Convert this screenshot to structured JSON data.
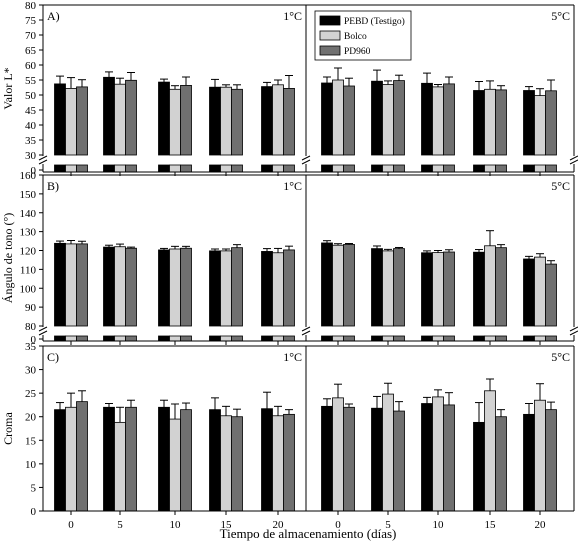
{
  "figure": {
    "xlabel": "Tiempo de almacenamiento (días)",
    "legend": [
      "PEBD (Testigo)",
      "Bolco",
      "PD960"
    ]
  },
  "colors": {
    "PEBD (Testigo)": "#000000",
    "Bolco": "#d2d2d2",
    "PD960": "#707070"
  },
  "chart_data": [
    {
      "type": "bar",
      "panel": "A)",
      "temp": "1°C",
      "ylabel": "Valor L*",
      "ylim": [
        30,
        80
      ],
      "yticks": [
        30,
        35,
        40,
        45,
        50,
        55,
        60,
        65,
        70,
        75,
        80
      ],
      "y_low_tick": 0,
      "broken_axis": true,
      "error_bars": true,
      "legend_position": "top-right",
      "categories": [
        "0",
        "5",
        "10",
        "15",
        "20"
      ],
      "series": [
        {
          "name": "PEBD (Testigo)",
          "values": [
            53.7,
            55.9,
            54.3,
            52.6,
            52.8
          ],
          "errors": [
            2.6,
            1.8,
            1.0,
            2.6,
            1.4
          ]
        },
        {
          "name": "Bolco",
          "values": [
            52.2,
            53.6,
            51.9,
            52.6,
            53.4
          ],
          "errors": [
            3.6,
            2.0,
            1.2,
            0.8,
            1.6
          ]
        },
        {
          "name": "PD960",
          "values": [
            52.7,
            54.9,
            53.2,
            51.9,
            52.2
          ],
          "errors": [
            2.4,
            2.6,
            2.8,
            1.5,
            4.3
          ]
        }
      ]
    },
    {
      "type": "bar",
      "panel": "",
      "temp": "5°C",
      "ylim": [
        30,
        80
      ],
      "broken_axis": true,
      "error_bars": true,
      "legend_position": "top-right",
      "categories": [
        "0",
        "5",
        "10",
        "15",
        "20"
      ],
      "series": [
        {
          "name": "PEBD (Testigo)",
          "values": [
            54.0,
            54.6,
            53.9,
            51.5,
            51.5
          ],
          "errors": [
            2.0,
            3.7,
            3.4,
            3.0,
            1.3
          ]
        },
        {
          "name": "Bolco",
          "values": [
            55.0,
            53.5,
            52.7,
            51.9,
            49.8
          ],
          "errors": [
            4.0,
            1.2,
            0.8,
            2.8,
            2.3
          ]
        },
        {
          "name": "PD960",
          "values": [
            53.0,
            54.8,
            53.7,
            51.7,
            51.4
          ],
          "errors": [
            2.6,
            1.8,
            2.3,
            1.4,
            3.6
          ]
        }
      ]
    },
    {
      "type": "bar",
      "panel": "B)",
      "temp": "1°C",
      "ylabel": "Ángulo de tono (°)",
      "ylim": [
        80,
        160
      ],
      "yticks": [
        80,
        90,
        100,
        110,
        120,
        130,
        140,
        150,
        160
      ],
      "y_low_tick": 0,
      "broken_axis": true,
      "error_bars": true,
      "categories": [
        "0",
        "5",
        "10",
        "15",
        "20"
      ],
      "series": [
        {
          "name": "PEBD (Testigo)",
          "values": [
            123.8,
            121.8,
            120.3,
            119.8,
            119.5
          ],
          "errors": [
            1.2,
            1.0,
            0.8,
            1.0,
            1.5
          ]
        },
        {
          "name": "Bolco",
          "values": [
            123.5,
            122.0,
            120.8,
            119.8,
            118.8
          ],
          "errors": [
            1.8,
            1.4,
            1.4,
            1.0,
            2.3
          ]
        },
        {
          "name": "PD960",
          "values": [
            123.5,
            121.2,
            121.2,
            121.5,
            120.3
          ],
          "errors": [
            1.4,
            0.6,
            1.0,
            1.6,
            2.0
          ]
        }
      ]
    },
    {
      "type": "bar",
      "panel": "",
      "temp": "5°C",
      "ylim": [
        80,
        160
      ],
      "broken_axis": true,
      "error_bars": true,
      "categories": [
        "0",
        "5",
        "10",
        "15",
        "20"
      ],
      "series": [
        {
          "name": "PEBD (Testigo)",
          "values": [
            124.0,
            121.0,
            118.8,
            119.1,
            115.5
          ],
          "errors": [
            1.2,
            1.4,
            1.0,
            1.4,
            1.4
          ]
        },
        {
          "name": "Bolco",
          "values": [
            122.8,
            119.8,
            118.9,
            122.5,
            116.5
          ],
          "errors": [
            0.8,
            0.8,
            1.1,
            8.0,
            1.8
          ]
        },
        {
          "name": "PD960",
          "values": [
            123.2,
            121.0,
            119.2,
            121.5,
            112.8
          ],
          "errors": [
            0.5,
            0.6,
            1.2,
            1.6,
            1.8
          ]
        }
      ]
    },
    {
      "type": "bar",
      "panel": "C)",
      "temp": "1°C",
      "ylabel": "Croma",
      "ylim": [
        0,
        35
      ],
      "yticks": [
        0,
        5,
        10,
        15,
        20,
        25,
        30,
        35
      ],
      "error_bars": true,
      "categories": [
        "0",
        "5",
        "10",
        "15",
        "20"
      ],
      "series": [
        {
          "name": "PEBD (Testigo)",
          "values": [
            21.5,
            22.0,
            22.0,
            21.5,
            21.7
          ],
          "errors": [
            1.5,
            0.8,
            1.5,
            2.5,
            3.5
          ]
        },
        {
          "name": "Bolco",
          "values": [
            22.0,
            18.8,
            19.5,
            20.2,
            20.2
          ],
          "errors": [
            3.0,
            3.2,
            3.2,
            2.0,
            2.0
          ]
        },
        {
          "name": "PD960",
          "values": [
            23.2,
            22.0,
            21.5,
            20.0,
            20.5
          ],
          "errors": [
            2.3,
            1.5,
            1.4,
            1.6,
            1.0
          ]
        }
      ]
    },
    {
      "type": "bar",
      "panel": "",
      "temp": "5°C",
      "ylim": [
        0,
        35
      ],
      "error_bars": true,
      "categories": [
        "0",
        "5",
        "10",
        "15",
        "20"
      ],
      "series": [
        {
          "name": "PEBD (Testigo)",
          "values": [
            22.2,
            21.8,
            22.8,
            18.8,
            20.5
          ],
          "errors": [
            1.6,
            2.5,
            1.3,
            4.2,
            2.3
          ]
        },
        {
          "name": "Bolco",
          "values": [
            24.0,
            24.8,
            24.2,
            25.5,
            23.5
          ],
          "errors": [
            2.9,
            2.3,
            1.5,
            2.5,
            3.5
          ]
        },
        {
          "name": "PD960",
          "values": [
            22.0,
            21.2,
            22.5,
            20.0,
            21.5
          ],
          "errors": [
            0.7,
            2.0,
            2.6,
            1.5,
            1.6
          ]
        }
      ]
    }
  ]
}
